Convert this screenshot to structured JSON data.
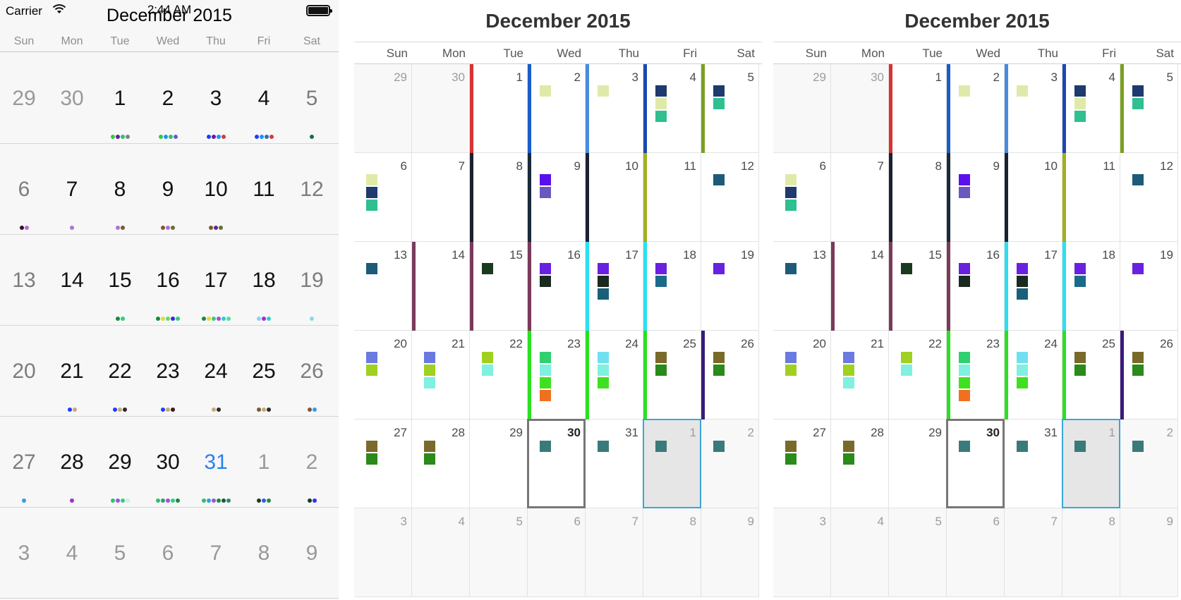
{
  "ios": {
    "status": {
      "carrier": "Carrier",
      "time": "2:44 AM",
      "wifi_icon": "wifi-icon",
      "battery_icon": "battery-icon"
    },
    "title": "December 2015",
    "days_of_week": [
      "Sun",
      "Mon",
      "Tue",
      "Wed",
      "Thu",
      "Fri",
      "Sat"
    ],
    "weeks": [
      [
        {
          "n": "29",
          "dim": true,
          "dots": []
        },
        {
          "n": "30",
          "dim": true,
          "dots": []
        },
        {
          "n": "1",
          "dots": [
            "#2ecc40",
            "#6a1b9a",
            "#2fbf71",
            "#808080"
          ]
        },
        {
          "n": "2",
          "dots": [
            "#2ecc40",
            "#1e90ff",
            "#2fbf71",
            "#6a5acd"
          ]
        },
        {
          "n": "3",
          "dots": [
            "#1e3cff",
            "#6a1b9a",
            "#1e90ff",
            "#d63a3a"
          ]
        },
        {
          "n": "4",
          "dots": [
            "#1e3cff",
            "#1e90ff",
            "#2f6fb0",
            "#d63a3a"
          ]
        },
        {
          "n": "5",
          "dots": [
            "#1a6b4a"
          ]
        }
      ],
      [
        {
          "n": "6",
          "dots": [
            "#3a0a2a",
            "#b36fd6"
          ]
        },
        {
          "n": "7",
          "dots": [
            "#b36fd6"
          ]
        },
        {
          "n": "8",
          "dots": [
            "#b36fd6",
            "#7a5a2a"
          ]
        },
        {
          "n": "9",
          "dots": [
            "#7a5a2a",
            "#b36fd6",
            "#6b6b3a"
          ]
        },
        {
          "n": "10",
          "dots": [
            "#7a5a2a",
            "#5a2a8a",
            "#6b6b3a"
          ]
        },
        {
          "n": "11",
          "dots": []
        },
        {
          "n": "12",
          "dots": []
        }
      ],
      [
        {
          "n": "13",
          "dots": []
        },
        {
          "n": "14",
          "dots": []
        },
        {
          "n": "15",
          "dots": [
            "#1a8a3a",
            "#2fd07a"
          ]
        },
        {
          "n": "16",
          "dots": [
            "#1a8a3a",
            "#e8d83a",
            "#5adf6a",
            "#3030d0",
            "#2fd07a"
          ]
        },
        {
          "n": "17",
          "dots": [
            "#1a8a3a",
            "#e8d83a",
            "#2fd07a",
            "#a050e0",
            "#2fd0d0",
            "#50e0a0"
          ]
        },
        {
          "n": "18",
          "dots": [
            "#8ad0ff",
            "#a030d0",
            "#2fd0d0"
          ]
        },
        {
          "n": "19",
          "dots": [
            "#8ad8e8"
          ]
        }
      ],
      [
        {
          "n": "20",
          "dots": []
        },
        {
          "n": "21",
          "dots": [
            "#1e3cff",
            "#c8a87a"
          ]
        },
        {
          "n": "22",
          "dots": [
            "#1e3cff",
            "#c8a87a",
            "#2a2a2a"
          ]
        },
        {
          "n": "23",
          "dots": [
            "#1e3cff",
            "#c8a87a",
            "#3a1a1a"
          ]
        },
        {
          "n": "24",
          "dots": [
            "#c8a87a",
            "#2a2a2a"
          ]
        },
        {
          "n": "25",
          "dots": [
            "#7a5a3a",
            "#c8a87a",
            "#2a2a2a"
          ]
        },
        {
          "n": "26",
          "dots": [
            "#7a5a3a",
            "#2fa0e0"
          ]
        }
      ],
      [
        {
          "n": "27",
          "dots": [
            "#2fa0e0"
          ]
        },
        {
          "n": "28",
          "dots": [
            "#a030d0"
          ]
        },
        {
          "n": "29",
          "dots": [
            "#2fbf71",
            "#a050e0",
            "#2fd07a",
            "#c8f0e8"
          ]
        },
        {
          "n": "30",
          "dots": [
            "#2fbf71",
            "#2fa070",
            "#a050e0",
            "#2fd07a",
            "#1a8a3a"
          ]
        },
        {
          "n": "31",
          "today": true,
          "dots": [
            "#2fbf71",
            "#2fa0e0",
            "#a050e0",
            "#1a8a3a",
            "#1a5a3a",
            "#2f8a6a"
          ]
        },
        {
          "n": "1",
          "dim": true,
          "dots": [
            "#1a3a1a",
            "#2f5aff",
            "#2f8a3a"
          ]
        },
        {
          "n": "2",
          "dim": true,
          "dots": [
            "#1a3a1a",
            "#2f2fff"
          ]
        }
      ],
      [
        {
          "n": "3",
          "dim": true,
          "dots": []
        },
        {
          "n": "4",
          "dim": true,
          "dots": []
        },
        {
          "n": "5",
          "dim": true,
          "dots": []
        },
        {
          "n": "6",
          "dim": true,
          "dots": []
        },
        {
          "n": "7",
          "dim": true,
          "dots": []
        },
        {
          "n": "8",
          "dim": true,
          "dots": []
        },
        {
          "n": "9",
          "dim": true,
          "dots": []
        }
      ]
    ]
  },
  "month_view": {
    "title": "December 2015",
    "days_of_week": [
      "Sun",
      "Mon",
      "Tue",
      "Wed",
      "Thu",
      "Fri",
      "Sat"
    ],
    "weeks": [
      [
        {
          "n": "29",
          "out": true,
          "bar": null,
          "sq": []
        },
        {
          "n": "30",
          "out": true,
          "bar": null,
          "sq": []
        },
        {
          "n": "1",
          "bar": "#d83232",
          "sq": []
        },
        {
          "n": "2",
          "bar": "#1a5cc8",
          "sq": [
            "#e0eaa8"
          ]
        },
        {
          "n": "3",
          "bar": "#4a8ae0",
          "sq": [
            "#e0eaa8"
          ]
        },
        {
          "n": "4",
          "bar": "#1a4ab0",
          "sq": [
            "#1e3a6e",
            "#e0eaa8",
            "#2fbf90"
          ]
        },
        {
          "n": "5",
          "bar": "#7aa020",
          "sq": [
            "#1e3a6e",
            "#2fbf90"
          ]
        }
      ],
      [
        {
          "n": "6",
          "bar": null,
          "sq": [
            "#e0eaa8",
            "#1e3a6e",
            "#2fbf90"
          ]
        },
        {
          "n": "7",
          "bar": null,
          "sq": []
        },
        {
          "n": "8",
          "bar": "#1a2230",
          "sq": []
        },
        {
          "n": "9",
          "bar": "#1a2a3a",
          "sq": [
            "#5a10ee",
            "#6a58c0"
          ]
        },
        {
          "n": "10",
          "bar": "#1a2230",
          "sq": []
        },
        {
          "n": "11",
          "bar": "#a0b020",
          "sq": []
        },
        {
          "n": "12",
          "bar": null,
          "sq": [
            "#1e5a7a"
          ]
        }
      ],
      [
        {
          "n": "13",
          "bar": null,
          "sq": [
            "#1e5a7a"
          ]
        },
        {
          "n": "14",
          "bar": "#7a3a5a",
          "sq": []
        },
        {
          "n": "15",
          "bar": "#7a3a5a",
          "sq": [
            "#1a3a20"
          ]
        },
        {
          "n": "16",
          "bar": "#7a3a5a",
          "sq": [
            "#6a20e0",
            "#1a2a20"
          ]
        },
        {
          "n": "17",
          "bar": "#2ae0f0",
          "sq": [
            "#6a20e0",
            "#1a2a20",
            "#1a607a"
          ]
        },
        {
          "n": "18",
          "bar": "#2ae0f0",
          "sq": [
            "#6a20e0",
            "#1a6a8a"
          ]
        },
        {
          "n": "19",
          "bar": null,
          "sq": [
            "#6a20e0"
          ]
        }
      ],
      [
        {
          "n": "20",
          "bar": null,
          "sq": [
            "#6a7ae0",
            "#a0d020"
          ]
        },
        {
          "n": "21",
          "bar": null,
          "sq": [
            "#6a7ae0",
            "#a0d020",
            "#80f0e0"
          ]
        },
        {
          "n": "22",
          "bar": null,
          "sq": [
            "#a0d020",
            "#80f0e0"
          ]
        },
        {
          "n": "23",
          "bar": "#2ae020",
          "sq": [
            "#2fd070",
            "#80f0e0",
            "#40e020",
            "#f07020"
          ]
        },
        {
          "n": "24",
          "bar": "#2ae020",
          "sq": [
            "#70e0f0",
            "#80f0e0",
            "#40e020"
          ]
        },
        {
          "n": "25",
          "bar": "#2ae020",
          "sq": [
            "#7a6a2a",
            "#2a8a1a"
          ]
        },
        {
          "n": "26",
          "bar": "#3a1a7a",
          "sq": [
            "#7a6a2a",
            "#2a8a1a"
          ]
        }
      ],
      [
        {
          "n": "27",
          "bar": null,
          "sq": [
            "#7a6a2a",
            "#2a8a1a"
          ]
        },
        {
          "n": "28",
          "bar": null,
          "sq": [
            "#7a6a2a",
            "#2a8a1a"
          ]
        },
        {
          "n": "29",
          "bar": null,
          "sq": []
        },
        {
          "n": "30",
          "today": true,
          "bar": null,
          "sq": [
            "#3a7a7a"
          ]
        },
        {
          "n": "31",
          "bar": null,
          "sq": [
            "#3a7a7a"
          ]
        },
        {
          "n": "1",
          "out": true,
          "sel": true,
          "bar": null,
          "sq": [
            "#3a7a7a"
          ]
        },
        {
          "n": "2",
          "out": true,
          "bar": null,
          "sq": [
            "#3a7a7a"
          ]
        }
      ],
      [
        {
          "n": "3",
          "out": true,
          "bar": null,
          "sq": []
        },
        {
          "n": "4",
          "out": true,
          "bar": null,
          "sq": []
        },
        {
          "n": "5",
          "out": true,
          "bar": null,
          "sq": []
        },
        {
          "n": "6",
          "out": true,
          "bar": null,
          "sq": []
        },
        {
          "n": "7",
          "out": true,
          "bar": null,
          "sq": []
        },
        {
          "n": "8",
          "out": true,
          "bar": null,
          "sq": []
        },
        {
          "n": "9",
          "out": true,
          "bar": null,
          "sq": []
        }
      ]
    ]
  }
}
